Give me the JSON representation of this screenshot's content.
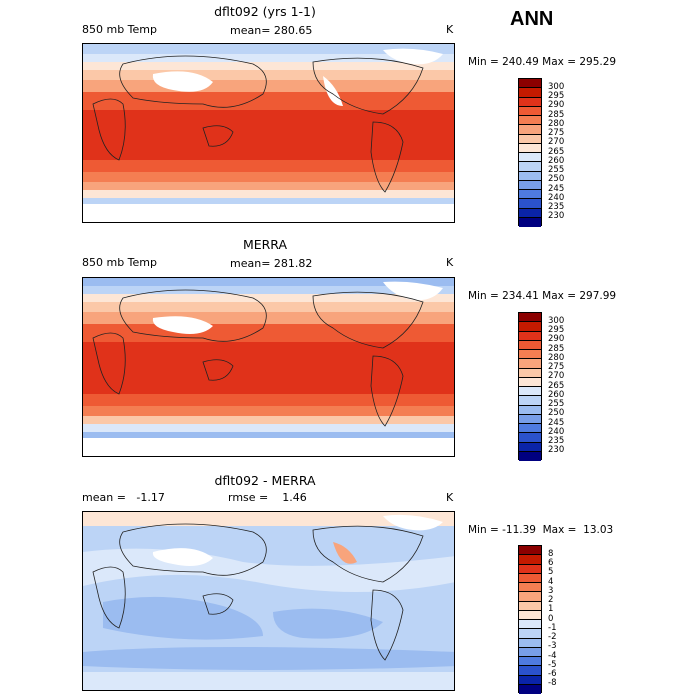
{
  "header": {
    "season": "ANN"
  },
  "panels": [
    {
      "title": "dflt092 (yrs 1-1)",
      "left_label": "850 mb Temp",
      "center_label": "mean= 280.65",
      "unit": "K",
      "minmax": "Min = 240.49  Max = 295.29",
      "colorbar_labels": [
        "300",
        "295",
        "290",
        "285",
        "280",
        "275",
        "270",
        "265",
        "260",
        "255",
        "250",
        "245",
        "240",
        "235",
        "230"
      ]
    },
    {
      "title": "MERRA",
      "left_label": "850 mb Temp",
      "center_label": "mean= 281.82",
      "unit": "K",
      "minmax": "Min = 234.41  Max = 297.99",
      "colorbar_labels": [
        "300",
        "295",
        "290",
        "285",
        "280",
        "275",
        "270",
        "265",
        "260",
        "255",
        "250",
        "245",
        "240",
        "235",
        "230"
      ]
    },
    {
      "title": "dflt092 - MERRA",
      "left_label": "mean =   -1.17",
      "center_label": "rmse =    1.46",
      "unit": "K",
      "minmax": "Min = -11.39  Max =  13.03",
      "colorbar_labels": [
        "8",
        "6",
        "5",
        "4",
        "3",
        "2",
        "1",
        "0",
        "-1",
        "-2",
        "-3",
        "-4",
        "-5",
        "-6",
        "-8"
      ]
    }
  ],
  "colors": {
    "abs_scale": [
      "#8b0000",
      "#c41a00",
      "#e0321a",
      "#ee5a34",
      "#f47e52",
      "#f8a47c",
      "#fbc8a8",
      "#fde6d6",
      "#dbe8fa",
      "#bcd4f6",
      "#9bbcf0",
      "#789ee8",
      "#4f7be0",
      "#2b52cc",
      "#0a24a8",
      "#000080"
    ],
    "diff_scale": [
      "#8b0000",
      "#c41a00",
      "#e0321a",
      "#ee5a34",
      "#f47e52",
      "#f8a47c",
      "#fbc8a8",
      "#fde6d6",
      "#dbe8fa",
      "#bcd4f6",
      "#9bbcf0",
      "#789ee8",
      "#4f7be0",
      "#2b52cc",
      "#0a24a8",
      "#000080"
    ]
  }
}
